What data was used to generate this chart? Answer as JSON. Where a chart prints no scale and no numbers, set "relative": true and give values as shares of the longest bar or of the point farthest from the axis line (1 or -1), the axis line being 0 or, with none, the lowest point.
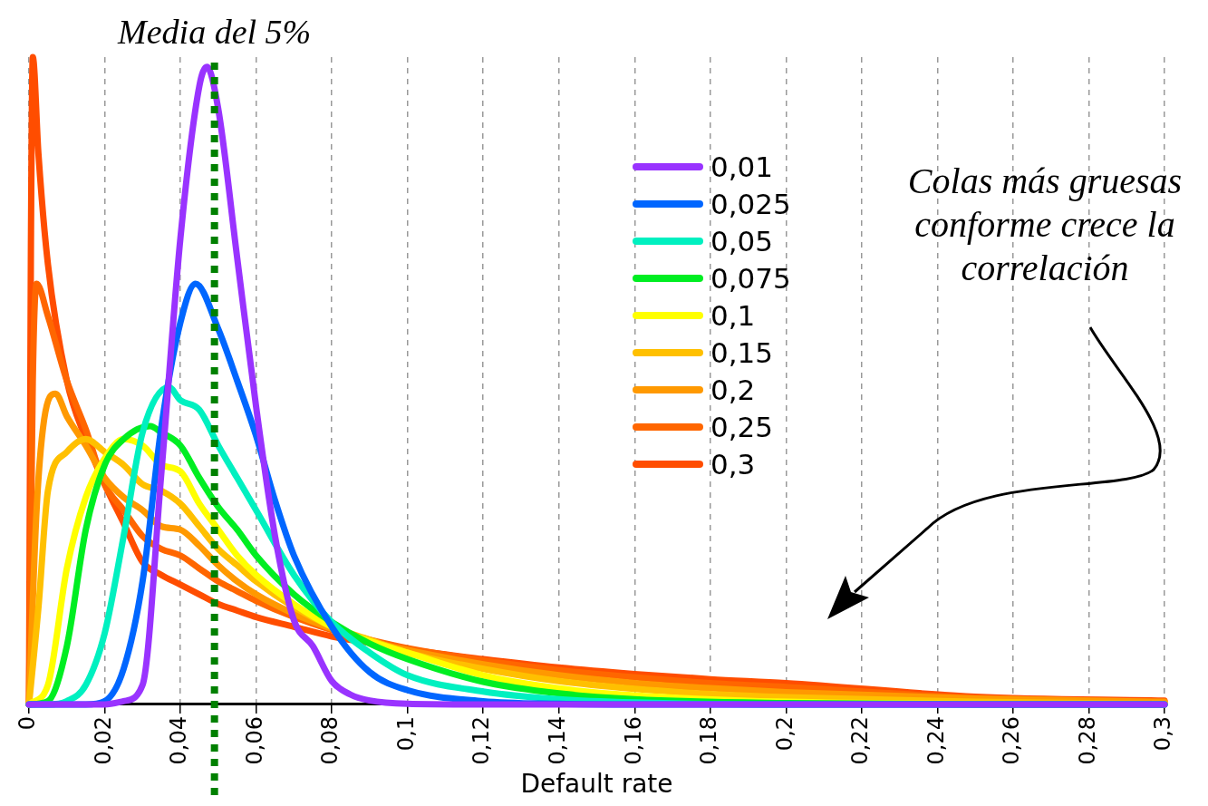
{
  "chart_data": {
    "type": "line",
    "relative": true,
    "xlabel": "Default rate",
    "xlim": [
      0,
      0.3
    ],
    "xticks": [
      0,
      {
        "value": 0.02,
        "label": "0,02"
      },
      {
        "value": 0.04,
        "label": "0,04"
      },
      {
        "value": 0.06,
        "label": "0,06"
      },
      {
        "value": 0.08,
        "label": "0,08"
      },
      {
        "value": 0.1,
        "label": "0,1"
      },
      {
        "value": 0.12,
        "label": "0,12"
      },
      {
        "value": 0.14,
        "label": "0,14"
      },
      {
        "value": 0.16,
        "label": "0,16"
      },
      {
        "value": 0.18,
        "label": "0,18"
      },
      {
        "value": 0.2,
        "label": "0,2"
      },
      {
        "value": 0.22,
        "label": "0,22"
      },
      {
        "value": 0.24,
        "label": "0,24"
      },
      {
        "value": 0.26,
        "label": "0,26"
      },
      {
        "value": 0.28,
        "label": "0,28"
      },
      {
        "value": 0.3,
        "label": "0,3"
      }
    ],
    "grid": "x",
    "legend": "top right",
    "marker": "none",
    "line_style": "solid",
    "ref_lines": [
      {
        "axis": "x",
        "value": 0.049,
        "label": "Media del 5%",
        "color": "#008000",
        "line_style": "dotted"
      }
    ],
    "annotations": [
      "Colas más gruesas conforme crece la correlación"
    ],
    "series": [
      {
        "name": "0,01",
        "color": "#9933ff",
        "x": [
          0,
          0.02,
          0.025,
          0.03,
          0.035,
          0.04,
          0.045,
          0.047,
          0.05,
          0.055,
          0.06,
          0.065,
          0.07,
          0.075,
          0.08,
          0.085,
          0.09,
          0.1,
          0.12,
          0.3
        ],
        "values": [
          0,
          0,
          0.005,
          0.03,
          0.36,
          0.72,
          0.955,
          0.985,
          0.92,
          0.69,
          0.46,
          0.26,
          0.13,
          0.09,
          0.036,
          0.015,
          0.006,
          0.001,
          0,
          0
        ]
      },
      {
        "name": "0,025",
        "color": "#0066ff",
        "x": [
          0,
          0.015,
          0.02,
          0.025,
          0.03,
          0.035,
          0.04,
          0.044,
          0.05,
          0.055,
          0.06,
          0.065,
          0.07,
          0.08,
          0.09,
          0.1,
          0.12,
          0.14,
          0.16,
          0.3
        ],
        "values": [
          0,
          0,
          0.005,
          0.055,
          0.19,
          0.43,
          0.59,
          0.65,
          0.58,
          0.5,
          0.415,
          0.315,
          0.23,
          0.12,
          0.05,
          0.022,
          0.005,
          0.001,
          0,
          0
        ]
      },
      {
        "name": "0,05",
        "color": "#00f0c0",
        "x": [
          0,
          0.005,
          0.01,
          0.015,
          0.02,
          0.025,
          0.03,
          0.037,
          0.04,
          0.045,
          0.05,
          0.055,
          0.06,
          0.07,
          0.08,
          0.09,
          0.1,
          0.12,
          0.14,
          0.16,
          0.2,
          0.3
        ],
        "values": [
          0,
          0,
          0.005,
          0.03,
          0.11,
          0.26,
          0.42,
          0.49,
          0.47,
          0.455,
          0.4,
          0.35,
          0.3,
          0.2,
          0.127,
          0.08,
          0.045,
          0.02,
          0.008,
          0.003,
          0,
          0
        ]
      },
      {
        "name": "0,075",
        "color": "#00ee22",
        "x": [
          0,
          0.005,
          0.01,
          0.015,
          0.02,
          0.025,
          0.032,
          0.035,
          0.04,
          0.045,
          0.05,
          0.055,
          0.06,
          0.07,
          0.08,
          0.09,
          0.1,
          0.12,
          0.14,
          0.16,
          0.2,
          0.25,
          0.3
        ],
        "values": [
          0,
          0.005,
          0.09,
          0.27,
          0.37,
          0.41,
          0.43,
          0.42,
          0.4,
          0.35,
          0.305,
          0.27,
          0.23,
          0.17,
          0.127,
          0.094,
          0.07,
          0.035,
          0.017,
          0.008,
          0.002,
          0,
          0
        ]
      },
      {
        "name": "0,1",
        "color": "#ffff00",
        "x": [
          0,
          0.005,
          0.01,
          0.015,
          0.02,
          0.025,
          0.03,
          0.035,
          0.04,
          0.045,
          0.05,
          0.055,
          0.06,
          0.07,
          0.08,
          0.09,
          0.1,
          0.12,
          0.14,
          0.16,
          0.2,
          0.25,
          0.3
        ],
        "values": [
          0,
          0.03,
          0.21,
          0.32,
          0.38,
          0.41,
          0.4,
          0.37,
          0.36,
          0.31,
          0.27,
          0.23,
          0.2,
          0.155,
          0.12,
          0.098,
          0.08,
          0.045,
          0.025,
          0.014,
          0.004,
          0.001,
          0
        ]
      },
      {
        "name": "0,15",
        "color": "#ffc000",
        "x": [
          0,
          0.0025,
          0.005,
          0.01,
          0.015,
          0.02,
          0.025,
          0.03,
          0.035,
          0.04,
          0.045,
          0.05,
          0.055,
          0.06,
          0.07,
          0.08,
          0.09,
          0.1,
          0.12,
          0.14,
          0.16,
          0.18,
          0.2,
          0.25,
          0.3
        ],
        "values": [
          0,
          0.15,
          0.33,
          0.39,
          0.41,
          0.39,
          0.37,
          0.34,
          0.33,
          0.31,
          0.275,
          0.24,
          0.215,
          0.19,
          0.15,
          0.12,
          0.1,
          0.08,
          0.055,
          0.036,
          0.024,
          0.016,
          0.011,
          0.004,
          0.001
        ]
      },
      {
        "name": "0,2",
        "color": "#ff9900",
        "x": [
          0,
          0.002,
          0.004,
          0.007,
          0.01,
          0.015,
          0.02,
          0.025,
          0.03,
          0.035,
          0.04,
          0.045,
          0.05,
          0.055,
          0.06,
          0.07,
          0.08,
          0.09,
          0.1,
          0.12,
          0.14,
          0.16,
          0.18,
          0.2,
          0.25,
          0.3
        ],
        "values": [
          0,
          0.3,
          0.44,
          0.48,
          0.445,
          0.4,
          0.35,
          0.32,
          0.3,
          0.275,
          0.27,
          0.245,
          0.215,
          0.19,
          0.17,
          0.14,
          0.117,
          0.098,
          0.084,
          0.062,
          0.045,
          0.033,
          0.025,
          0.019,
          0.009,
          0.004
        ]
      },
      {
        "name": "0,25",
        "color": "#ff6600",
        "x": [
          0,
          0.001,
          0.002,
          0.005,
          0.01,
          0.015,
          0.02,
          0.025,
          0.03,
          0.035,
          0.04,
          0.045,
          0.05,
          0.055,
          0.06,
          0.07,
          0.08,
          0.09,
          0.1,
          0.12,
          0.14,
          0.16,
          0.18,
          0.2,
          0.25,
          0.3
        ],
        "values": [
          0,
          0.5,
          0.65,
          0.6,
          0.5,
          0.425,
          0.34,
          0.3,
          0.26,
          0.24,
          0.23,
          0.21,
          0.19,
          0.175,
          0.16,
          0.135,
          0.115,
          0.1,
          0.087,
          0.068,
          0.053,
          0.042,
          0.033,
          0.027,
          0.01,
          0.004
        ]
      },
      {
        "name": "0,3",
        "color": "#ff4d00",
        "x": [
          0,
          0.0005,
          0.001,
          0.0025,
          0.005,
          0.01,
          0.015,
          0.02,
          0.025,
          0.03,
          0.035,
          0.04,
          0.045,
          0.05,
          0.055,
          0.06,
          0.07,
          0.08,
          0.09,
          0.1,
          0.12,
          0.14,
          0.16,
          0.18,
          0.2,
          0.25,
          0.3
        ],
        "values": [
          0,
          0.7,
          1,
          0.85,
          0.68,
          0.5,
          0.41,
          0.34,
          0.28,
          0.22,
          0.2,
          0.185,
          0.17,
          0.155,
          0.145,
          0.135,
          0.12,
          0.105,
          0.095,
          0.085,
          0.07,
          0.057,
          0.047,
          0.039,
          0.033,
          0.012,
          0.006
        ]
      }
    ]
  }
}
